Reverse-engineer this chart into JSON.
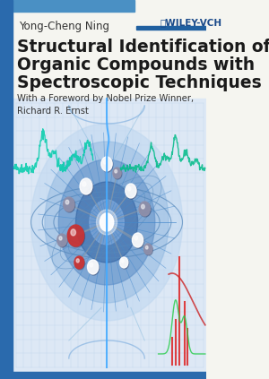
{
  "bg_color": "#f5f5f0",
  "top_bar_color": "#4a90c4",
  "author": "Yong-Cheng Ning",
  "publisher": "ⓁWILEY-VCH",
  "title_line1": "Structural Identification of",
  "title_line2": "Organic Compounds with",
  "title_line3": "Spectroscopic Techniques",
  "subtitle": "With a Foreword by Nobel Prize Winner,\nRichard R. Ernst",
  "title_color": "#1a1a1a",
  "author_color": "#333333",
  "publisher_color": "#1a4a8a",
  "subtitle_color": "#333333",
  "wiley_bar_color": "#2060a0",
  "left_bar_color": "#2a6aad",
  "bottom_bar_color": "#2a6aad"
}
